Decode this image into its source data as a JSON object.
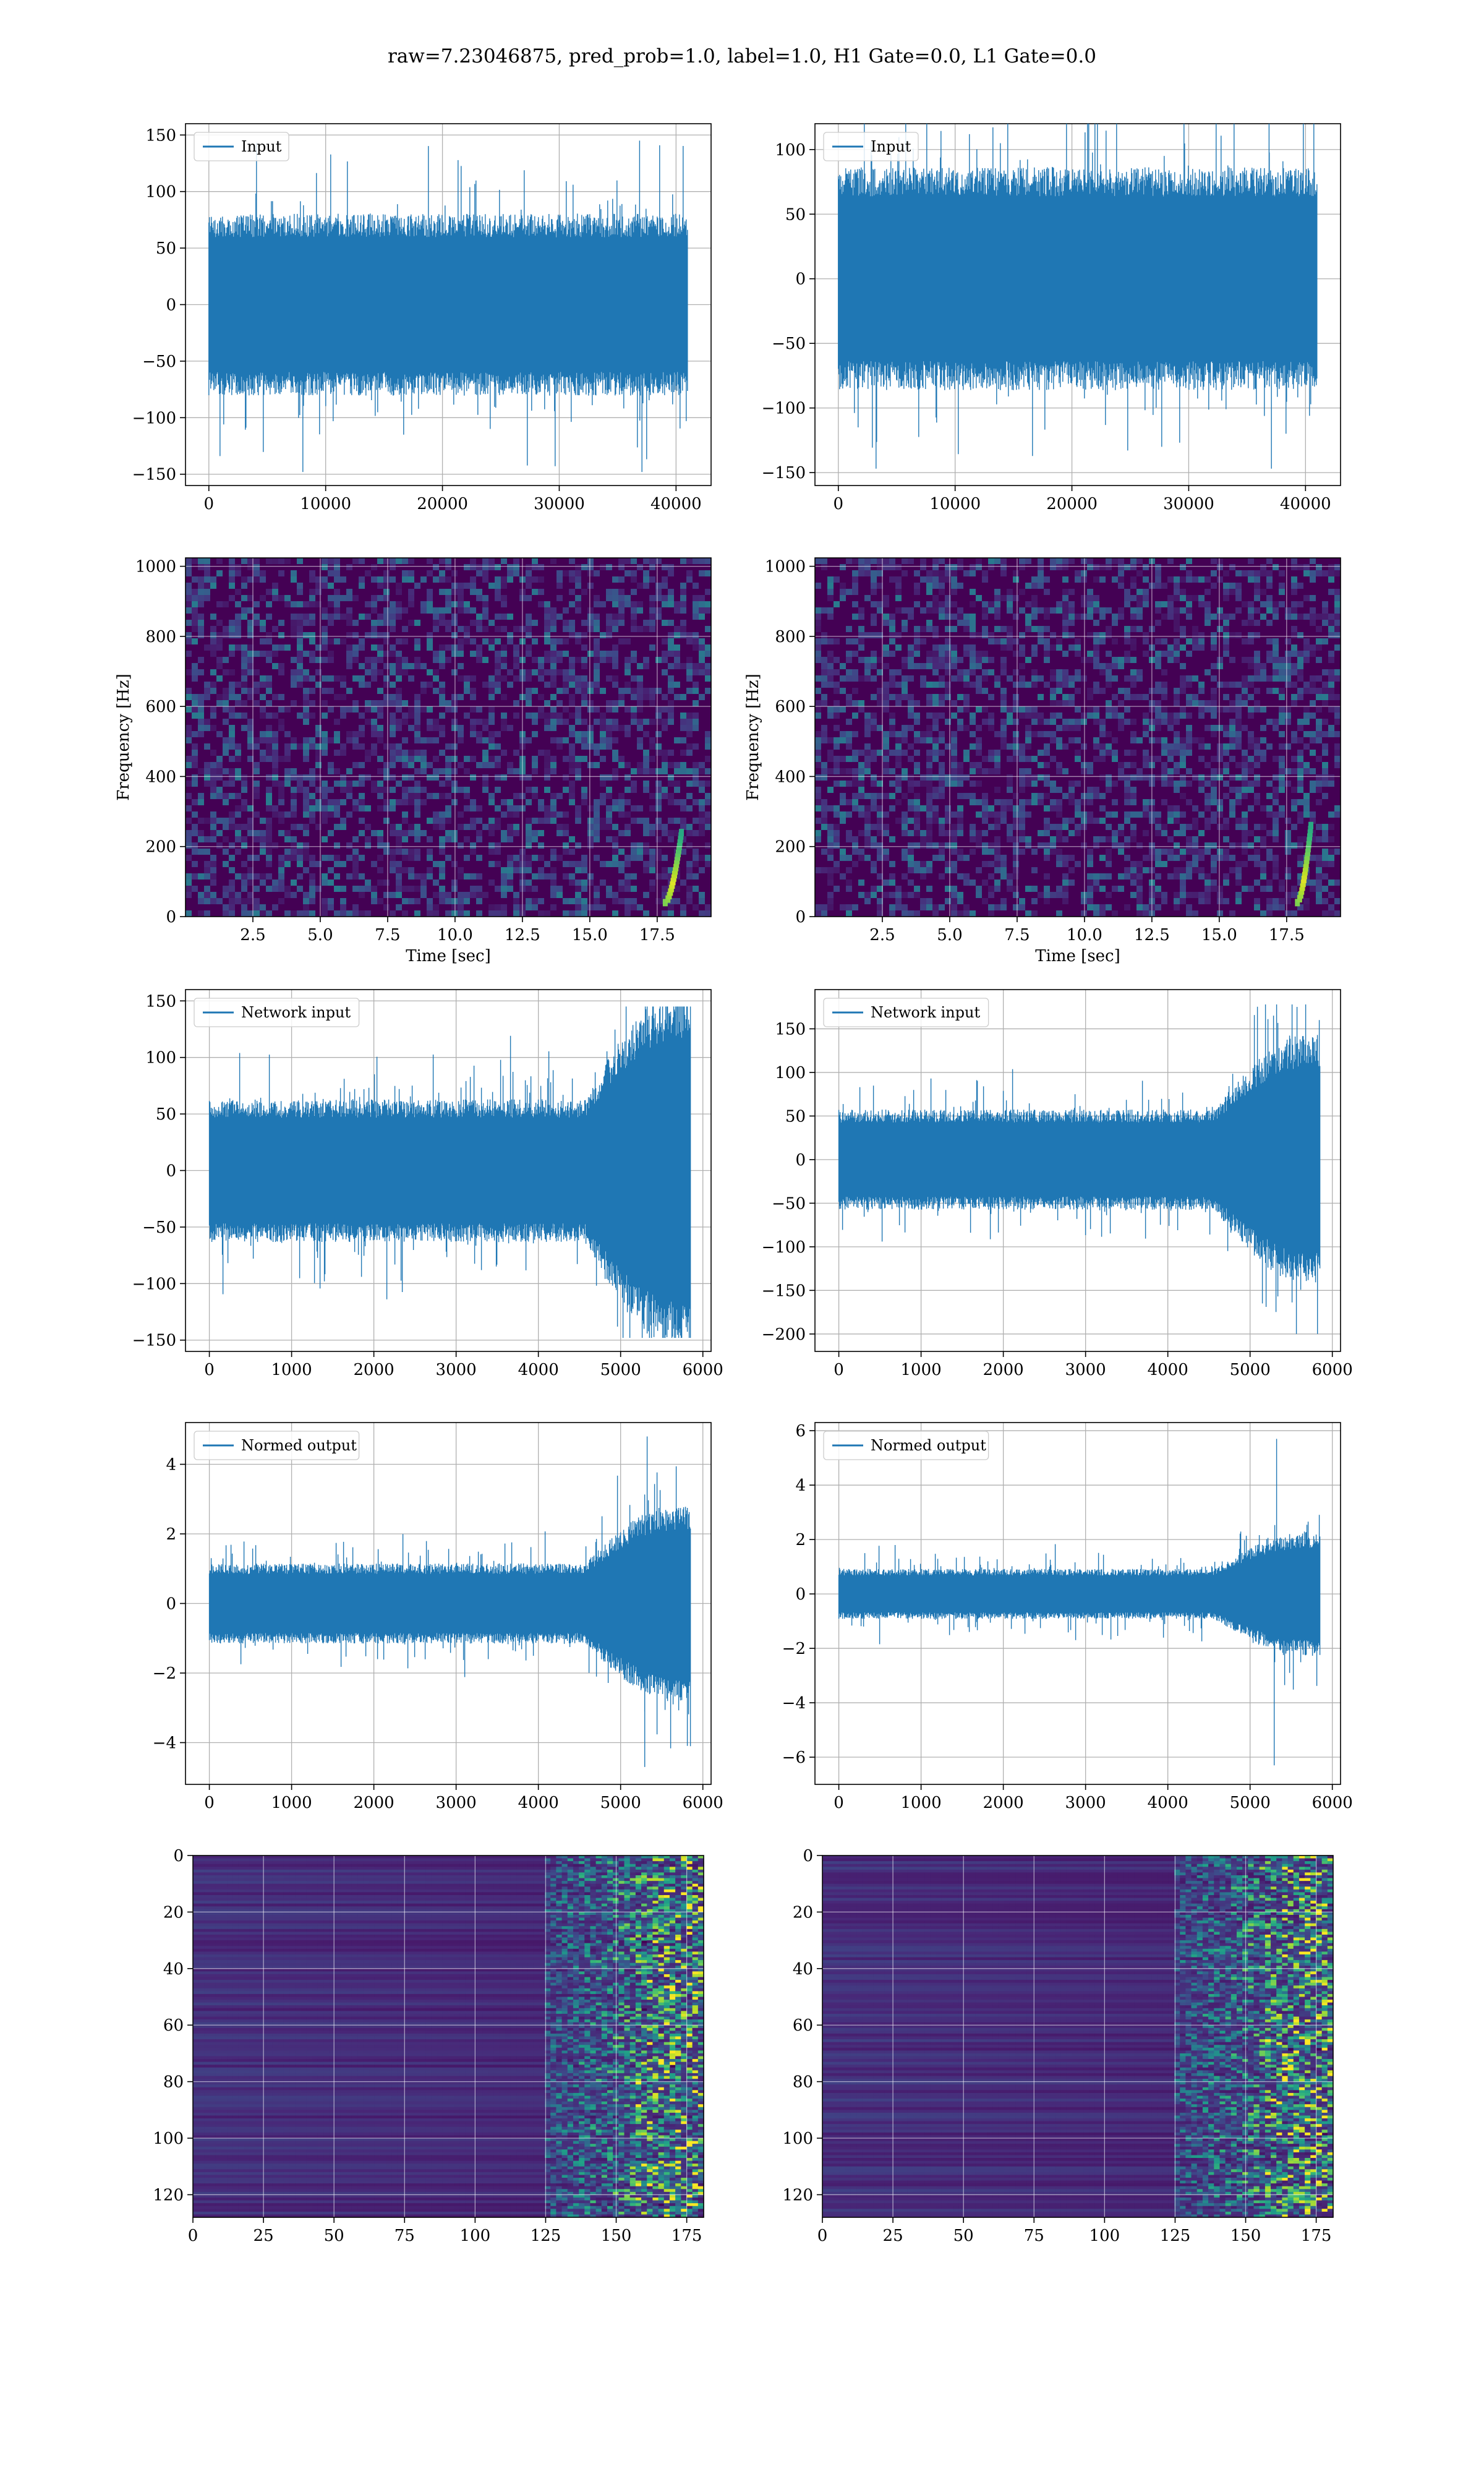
{
  "figure_title": "raw=7.23046875, pred_prob=1.0, label=1.0, H1 Gate=0.0, L1 Gate=0.0",
  "colors": {
    "line": "#1f77b4",
    "grid": "#b0b0b0",
    "spec_background": "#440154",
    "viridis": [
      "#440154",
      "#482878",
      "#3e4989",
      "#31688e",
      "#26828e",
      "#1f9e89",
      "#35b779",
      "#6ece58",
      "#b5de2b",
      "#fde725"
    ]
  },
  "chart_data": [
    {
      "id": "h1-input",
      "type": "line",
      "legend": "Input",
      "xlim": [
        -2000,
        43000
      ],
      "ylim": [
        -160,
        160
      ],
      "xticks": [
        0,
        10000,
        20000,
        30000,
        40000
      ],
      "yticks": [
        -150,
        -100,
        -50,
        0,
        50,
        100,
        150
      ],
      "series": [
        {
          "name": "Input",
          "n_samples": 40960,
          "x_start": 0,
          "x_end": 40960,
          "band": [
            -70,
            70
          ],
          "peak_max": 145,
          "peak_min": -148
        }
      ]
    },
    {
      "id": "l1-input",
      "type": "line",
      "legend": "Input",
      "xlim": [
        -2000,
        43000
      ],
      "ylim": [
        -160,
        120
      ],
      "xticks": [
        0,
        10000,
        20000,
        30000,
        40000
      ],
      "yticks": [
        -150,
        -100,
        -50,
        0,
        50,
        100
      ],
      "series": [
        {
          "name": "Input",
          "n_samples": 40960,
          "x_start": 0,
          "x_end": 40960,
          "band": [
            -75,
            75
          ],
          "peak_max": 127,
          "peak_min": -147
        }
      ]
    },
    {
      "id": "h1-spectrogram",
      "type": "heatmap",
      "xlabel": "Time [sec]",
      "ylabel": "Frequency [Hz]",
      "xlim": [
        0,
        19.5
      ],
      "ylim": [
        0,
        1024
      ],
      "xticks": [
        2.5,
        5.0,
        7.5,
        10.0,
        12.5,
        15.0,
        17.5
      ],
      "yticks": [
        0,
        200,
        400,
        600,
        800,
        1000
      ],
      "chirp": {
        "t_start": 17.8,
        "t_end": 18.4,
        "f_start": 40,
        "f_end": 240
      }
    },
    {
      "id": "l1-spectrogram",
      "type": "heatmap",
      "xlabel": "Time [sec]",
      "ylabel": "Frequency [Hz]",
      "xlim": [
        0,
        19.5
      ],
      "ylim": [
        0,
        1024
      ],
      "xticks": [
        2.5,
        5.0,
        7.5,
        10.0,
        12.5,
        15.0,
        17.5
      ],
      "yticks": [
        0,
        200,
        400,
        600,
        800,
        1000
      ],
      "chirp": {
        "t_start": 17.9,
        "t_end": 18.4,
        "f_start": 40,
        "f_end": 260
      }
    },
    {
      "id": "h1-network-input",
      "type": "line",
      "legend": "Network input",
      "xlim": [
        -290,
        6100
      ],
      "ylim": [
        -160,
        160
      ],
      "xticks": [
        0,
        1000,
        2000,
        3000,
        4000,
        5000,
        6000
      ],
      "yticks": [
        -150,
        -100,
        -50,
        0,
        50,
        100,
        150
      ],
      "series": [
        {
          "name": "Network input",
          "n_samples": 5850,
          "x_start": 0,
          "x_end": 5850,
          "band": [
            -55,
            55
          ],
          "peak_max": 145,
          "peak_min": -148
        }
      ]
    },
    {
      "id": "l1-network-input",
      "type": "line",
      "legend": "Network input",
      "xlim": [
        -290,
        6100
      ],
      "ylim": [
        -220,
        195
      ],
      "xticks": [
        0,
        1000,
        2000,
        3000,
        4000,
        5000,
        6000
      ],
      "yticks": [
        -200,
        -150,
        -100,
        -50,
        0,
        50,
        100,
        150
      ],
      "series": [
        {
          "name": "Network input",
          "n_samples": 5850,
          "x_start": 0,
          "x_end": 5850,
          "band": [
            -50,
            50
          ],
          "peak_max": 178,
          "peak_min": -200
        }
      ]
    },
    {
      "id": "h1-normed-output",
      "type": "line",
      "legend": "Normed output",
      "xlim": [
        -290,
        6100
      ],
      "ylim": [
        -5.2,
        5.2
      ],
      "xticks": [
        0,
        1000,
        2000,
        3000,
        4000,
        5000,
        6000
      ],
      "yticks": [
        -4,
        -2,
        0,
        2,
        4
      ],
      "series": [
        {
          "name": "Normed output",
          "n_samples": 5850,
          "x_start": 0,
          "x_end": 5850,
          "band": [
            -1.0,
            1.0
          ],
          "peak_max": 4.8,
          "peak_min": -4.7
        }
      ]
    },
    {
      "id": "l1-normed-output",
      "type": "line",
      "legend": "Normed output",
      "xlim": [
        -290,
        6100
      ],
      "ylim": [
        -7.0,
        6.3
      ],
      "xticks": [
        0,
        1000,
        2000,
        3000,
        4000,
        5000,
        6000
      ],
      "yticks": [
        -6,
        -4,
        -2,
        0,
        2,
        4,
        6
      ],
      "series": [
        {
          "name": "Normed output",
          "n_samples": 5850,
          "x_start": 0,
          "x_end": 5850,
          "band": [
            -0.8,
            0.8
          ],
          "peak_max": 5.7,
          "peak_min": -6.3
        }
      ]
    },
    {
      "id": "h1-feature-map",
      "type": "heatmap",
      "xlim": [
        0,
        181
      ],
      "ylim": [
        128,
        0
      ],
      "xticks": [
        0,
        25,
        50,
        75,
        100,
        125,
        150,
        175
      ],
      "yticks": [
        0,
        20,
        40,
        60,
        80,
        100,
        120
      ],
      "rows": 128,
      "cols": 181
    },
    {
      "id": "l1-feature-map",
      "type": "heatmap",
      "xlim": [
        0,
        181
      ],
      "ylim": [
        128,
        0
      ],
      "xticks": [
        0,
        25,
        50,
        75,
        100,
        125,
        150,
        175
      ],
      "yticks": [
        0,
        20,
        40,
        60,
        80,
        100,
        120
      ],
      "rows": 128,
      "cols": 181
    }
  ]
}
